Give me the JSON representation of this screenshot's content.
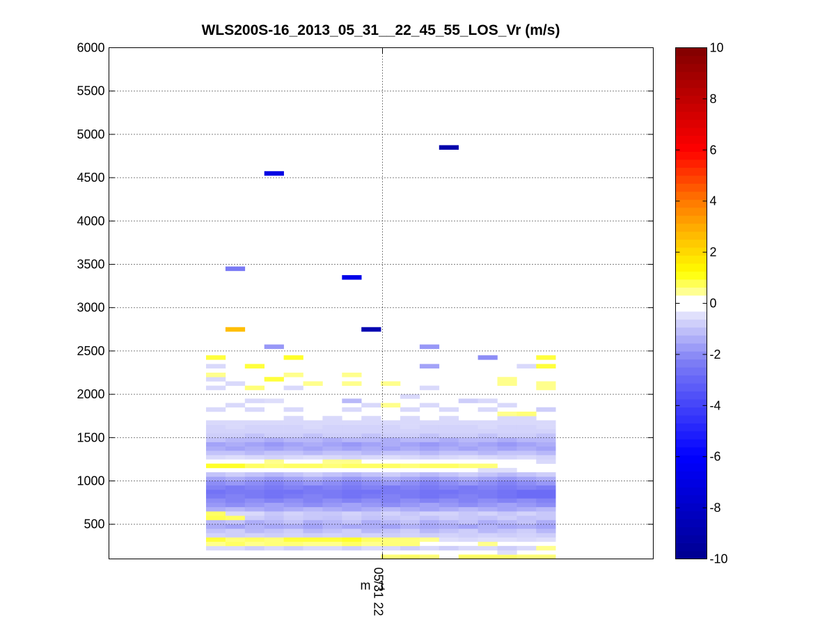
{
  "chart_data": {
    "type": "heatmap",
    "title": "WLS200S-16_2013_05_31__22_45_55_LOS_Vr (m/s)",
    "xlabel": "",
    "ylabel": "",
    "ylim": [
      100,
      6000
    ],
    "y_ticks": [
      "500",
      "1000",
      "1500",
      "2000",
      "2500",
      "3000",
      "3500",
      "4000",
      "4500",
      "5000",
      "5500",
      "6000"
    ],
    "x_tick_label": "05/31 22",
    "x_tick_label_overlap": "m -1",
    "grid": "dotted",
    "colorbar": {
      "range": [
        -10,
        10
      ],
      "ticks": [
        "-10",
        "-8",
        "-6",
        "-4",
        "-2",
        "0",
        "2",
        "4",
        "6",
        "8",
        "10"
      ],
      "colormap": "blue-white-yellow-red"
    },
    "column_count": 18,
    "range_gate_m": 50,
    "profile_rows": [
      {
        "altitude": 125,
        "values": [
          0,
          0,
          0,
          0,
          0,
          0,
          0,
          0,
          0,
          0.6,
          0.7,
          0.6,
          0,
          0.7,
          0.7,
          0.7,
          0.6,
          0.6
        ]
      },
      {
        "altitude": 175,
        "values": [
          0,
          0,
          0,
          0,
          0,
          0,
          0,
          0,
          0,
          0,
          0,
          0,
          0,
          0,
          0,
          -0.5,
          0,
          0
        ]
      },
      {
        "altitude": 225,
        "values": [
          -0.6,
          -0.6,
          -0.8,
          -0.6,
          -0.8,
          -0.6,
          -0.6,
          -0.8,
          -0.6,
          -0.6,
          -0.8,
          -0.6,
          -0.8,
          -0.6,
          -0.6,
          -0.8,
          -0.6,
          0.5
        ]
      },
      {
        "altitude": 275,
        "values": [
          0.5,
          0.7,
          0.5,
          0.6,
          0.6,
          0.5,
          0.5,
          0.7,
          0.5,
          0.6,
          0.6,
          0,
          0,
          0,
          0.5,
          0,
          0,
          0
        ]
      },
      {
        "altitude": 325,
        "values": [
          0.9,
          0.6,
          0.7,
          0.6,
          0.9,
          0.9,
          0.9,
          1.0,
          0.7,
          0.6,
          0.6,
          0.5,
          -0.5,
          -0.6,
          -0.5,
          -0.5,
          -0.6,
          -0.5
        ]
      },
      {
        "altitude": 375,
        "values": [
          -0.7,
          -0.8,
          -0.7,
          -0.8,
          -0.7,
          -0.8,
          -0.7,
          -0.8,
          -0.7,
          -0.8,
          -0.7,
          -0.8,
          -0.7,
          -0.8,
          -0.7,
          -0.8,
          -0.7,
          -0.8
        ]
      },
      {
        "altitude": 425,
        "values": [
          -1.0,
          -0.8,
          -1.2,
          -1.0,
          -0.8,
          -1.2,
          -1.0,
          -0.8,
          -1.2,
          -1.0,
          -0.8,
          -1.2,
          -1.0,
          -0.8,
          -1.2,
          -1.0,
          -0.8,
          -1.2
        ]
      },
      {
        "altitude": 475,
        "values": [
          -1.4,
          -1.6,
          -1.3,
          -1.5,
          -1.4,
          -1.6,
          -1.3,
          -1.5,
          -1.4,
          -1.6,
          -1.3,
          -1.5,
          -1.4,
          -1.6,
          -1.3,
          -1.5,
          -1.4,
          -1.6
        ]
      },
      {
        "altitude": 525,
        "values": [
          -1.2,
          -1.0,
          -1.4,
          -1.2,
          -1.0,
          -1.4,
          -1.2,
          -1.0,
          -1.4,
          -1.2,
          -1.0,
          -1.4,
          -1.2,
          -1.0,
          -1.4,
          -1.2,
          -1.0,
          -1.4
        ]
      },
      {
        "altitude": 575,
        "values": [
          0.8,
          0.7,
          -0.8,
          -1.0,
          -0.8,
          -0.9,
          -1.0,
          -0.8,
          -1.0,
          -0.9,
          -0.8,
          -1.0,
          -0.8,
          -0.9,
          -1.0,
          -0.8,
          -1.0,
          -0.9
        ]
      },
      {
        "altitude": 625,
        "values": [
          0.7,
          -0.6,
          -0.6,
          -0.9,
          -0.7,
          -0.9,
          -0.9,
          -0.7,
          -0.9,
          -0.7,
          -0.9,
          -0.7,
          -0.7,
          -0.9,
          -0.7,
          -0.9,
          -0.7,
          -0.9
        ]
      },
      {
        "altitude": 675,
        "values": [
          -1.4,
          -1.2,
          -1.4,
          -1.6,
          -1.4,
          -1.2,
          -1.4,
          -1.6,
          -1.4,
          -1.2,
          -1.4,
          -1.6,
          -1.4,
          -1.2,
          -1.4,
          -1.6,
          -1.4,
          -1.2
        ]
      },
      {
        "altitude": 725,
        "values": [
          -1.8,
          -2.0,
          -1.8,
          -1.6,
          -1.8,
          -2.0,
          -1.8,
          -1.6,
          -1.8,
          -2.0,
          -1.8,
          -1.6,
          -1.8,
          -2.0,
          -1.8,
          -1.6,
          -1.8,
          -2.0
        ]
      },
      {
        "altitude": 775,
        "values": [
          -2.0,
          -2.2,
          -2.0,
          -2.2,
          -2.0,
          -2.2,
          -2.0,
          -2.2,
          -2.0,
          -2.2,
          -2.0,
          -2.2,
          -2.0,
          -2.2,
          -2.0,
          -2.2,
          -2.0,
          -2.2
        ]
      },
      {
        "altitude": 825,
        "values": [
          -2.4,
          -2.2,
          -2.4,
          -2.6,
          -2.4,
          -2.2,
          -2.4,
          -2.6,
          -2.4,
          -2.2,
          -2.4,
          -2.6,
          -2.4,
          -2.2,
          -2.4,
          -2.6,
          -2.8,
          -2.8
        ]
      },
      {
        "altitude": 875,
        "values": [
          -2.6,
          -2.4,
          -2.4,
          -2.6,
          -2.6,
          -2.4,
          -2.4,
          -2.6,
          -2.6,
          -2.4,
          -2.4,
          -2.6,
          -2.6,
          -2.4,
          -2.4,
          -2.6,
          -2.8,
          -2.8
        ]
      },
      {
        "altitude": 925,
        "values": [
          -2.2,
          -2.4,
          -2.2,
          -2.4,
          -2.2,
          -2.4,
          -2.2,
          -2.4,
          -2.2,
          -2.4,
          -2.2,
          -2.4,
          -2.2,
          -2.4,
          -2.2,
          -2.4,
          -2.2,
          -2.4
        ]
      },
      {
        "altitude": 975,
        "values": [
          -2.0,
          -1.8,
          -2.0,
          -2.2,
          -2.0,
          -1.8,
          -2.0,
          -2.2,
          -2.0,
          -1.8,
          -2.0,
          -2.2,
          -2.0,
          -1.8,
          -2.0,
          -2.2,
          -2.0,
          -1.8
        ]
      },
      {
        "altitude": 1025,
        "values": [
          -1.6,
          -1.4,
          -1.6,
          -1.8,
          -1.6,
          -1.4,
          -1.6,
          -1.8,
          -1.6,
          -1.4,
          -1.6,
          -1.8,
          -1.6,
          -1.4,
          -1.6,
          -1.8,
          -1.6,
          -1.4
        ]
      },
      {
        "altitude": 1075,
        "values": [
          -1.0,
          -0.8,
          -1.0,
          -1.2,
          -1.0,
          -0.8,
          -1.0,
          -1.2,
          -1.0,
          -0.8,
          -1.0,
          -1.2,
          -1.0,
          -0.8,
          -1.0,
          -1.2,
          -1.0,
          -0.8
        ]
      },
      {
        "altitude": 1125,
        "values": [
          0,
          0,
          0,
          0,
          0,
          0,
          0,
          0,
          0,
          0,
          0,
          0,
          0,
          0,
          -0.5,
          -0.5,
          0,
          0
        ]
      },
      {
        "altitude": 1175,
        "values": [
          1.0,
          1.0,
          0.7,
          0.6,
          0.7,
          0.7,
          0.6,
          0.7,
          0.7,
          0.7,
          0.6,
          0.7,
          0.7,
          0.6,
          0.6,
          0,
          0,
          0
        ]
      },
      {
        "altitude": 1225,
        "values": [
          0,
          0,
          0,
          0.5,
          0,
          0,
          0.5,
          0.5,
          0,
          0,
          0,
          0,
          0,
          0,
          0,
          0,
          0,
          -0.6
        ]
      },
      {
        "altitude": 1275,
        "values": [
          -0.6,
          -0.5,
          -0.6,
          -0.7,
          -0.6,
          -0.5,
          -0.6,
          -0.7,
          -0.6,
          -0.5,
          -0.6,
          -0.7,
          -0.6,
          -0.5,
          -0.6,
          -0.7,
          -0.6,
          -0.7
        ]
      },
      {
        "altitude": 1325,
        "values": [
          -1.0,
          -1.0,
          -1.2,
          -1.0,
          -1.0,
          -1.2,
          -1.0,
          -1.0,
          -1.2,
          -1.0,
          -1.0,
          -1.2,
          -1.0,
          -1.0,
          -1.2,
          -1.0,
          -1.0,
          -1.2
        ]
      },
      {
        "altitude": 1375,
        "values": [
          -1.4,
          -1.6,
          -1.4,
          -1.6,
          -1.4,
          -1.6,
          -1.4,
          -1.6,
          -1.4,
          -1.6,
          -1.4,
          -1.6,
          -1.4,
          -1.6,
          -1.4,
          -1.6,
          -1.4,
          -1.6
        ]
      },
      {
        "altitude": 1425,
        "values": [
          -1.6,
          -1.4,
          -1.6,
          -1.8,
          -1.6,
          -1.4,
          -1.6,
          -1.8,
          -1.6,
          -1.4,
          -1.6,
          -1.8,
          -1.6,
          -1.4,
          -1.6,
          -1.8,
          -1.6,
          -1.4
        ]
      },
      {
        "altitude": 1475,
        "values": [
          -1.0,
          -1.2,
          -1.2,
          -1.4,
          -1.2,
          -1.2,
          -1.4,
          -1.2,
          -1.2,
          -1.4,
          -1.2,
          -1.2,
          -1.4,
          -1.2,
          -1.2,
          -1.4,
          -1.2,
          -1.2
        ]
      },
      {
        "altitude": 1525,
        "values": [
          -0.8,
          -0.8,
          -1.0,
          -0.8,
          -0.8,
          -1.0,
          -0.8,
          -0.8,
          -1.0,
          -0.8,
          -0.8,
          -1.0,
          -0.8,
          -0.8,
          -1.0,
          -0.8,
          -0.8,
          -1.0
        ]
      },
      {
        "altitude": 1575,
        "values": [
          -0.7,
          -0.7,
          -0.7,
          -0.7,
          -0.7,
          -0.7,
          -0.7,
          -0.7,
          -0.7,
          -0.7,
          -0.7,
          -0.7,
          -0.7,
          -0.7,
          -0.7,
          -0.7,
          -0.7,
          -0.7
        ]
      },
      {
        "altitude": 1625,
        "values": [
          -0.7,
          -0.6,
          -0.7,
          -0.7,
          -0.7,
          -0.6,
          -0.7,
          -0.7,
          -0.7,
          -0.7,
          -0.6,
          -0.7,
          -0.7,
          -0.7,
          -0.6,
          -0.7,
          -0.7,
          -0.6
        ]
      },
      {
        "altitude": 1675,
        "values": [
          -0.6,
          -0.6,
          -0.6,
          -0.6,
          -0.6,
          -0.6,
          -0.6,
          -0.6,
          -0.6,
          -0.6,
          -0.6,
          -0.6,
          -0.6,
          -0.6,
          -0.6,
          -0.6,
          -0.6,
          -0.6
        ]
      },
      {
        "altitude": 1725,
        "values": [
          0,
          0,
          0,
          0,
          -0.6,
          0,
          -0.6,
          0,
          -0.6,
          0,
          -0.6,
          0,
          -0.6,
          0,
          0,
          -0.6,
          -0.6,
          0
        ]
      },
      {
        "altitude": 1775,
        "values": [
          0,
          0,
          0,
          0,
          0,
          0,
          0,
          0,
          0,
          0,
          0,
          0,
          0,
          0,
          0,
          0.5,
          0.6,
          0
        ]
      },
      {
        "altitude": 1825,
        "values": [
          -0.6,
          0,
          -0.6,
          0,
          -0.6,
          0,
          0,
          -0.6,
          0,
          0,
          -0.6,
          0,
          -0.6,
          0,
          -0.6,
          0,
          0,
          -0.8
        ]
      },
      {
        "altitude": 1875,
        "values": [
          0,
          -0.6,
          0,
          0,
          0,
          0,
          0,
          0,
          -0.6,
          0.5,
          0,
          -0.6,
          0,
          0,
          0,
          -0.6,
          0,
          0
        ]
      },
      {
        "altitude": 1925,
        "values": [
          0,
          0,
          -0.6,
          -0.5,
          0,
          0,
          0,
          -1.2,
          0,
          0,
          0,
          0,
          0,
          -0.8,
          -0.6,
          0,
          0,
          0
        ]
      },
      {
        "altitude": 1975,
        "values": [
          0,
          0,
          0,
          0,
          0,
          0,
          0,
          0,
          0,
          0,
          -0.6,
          0,
          0,
          0,
          0,
          0,
          0,
          0
        ]
      },
      {
        "altitude": 2025,
        "values": [
          0,
          0,
          0,
          0,
          0,
          0,
          0,
          0,
          0,
          0,
          0,
          0,
          0,
          0,
          0,
          0,
          0,
          0
        ]
      },
      {
        "altitude": 2075,
        "values": [
          -0.6,
          0,
          0.6,
          0,
          -0.6,
          0,
          0,
          0,
          0,
          0,
          0,
          -0.6,
          0,
          0,
          0,
          0,
          0,
          0.5
        ]
      },
      {
        "altitude": 2125,
        "values": [
          0,
          -0.6,
          0,
          0,
          0,
          0.5,
          0,
          0.5,
          0,
          0.5,
          0,
          0,
          0,
          0,
          0,
          0.5,
          0,
          0.5
        ]
      },
      {
        "altitude": 2175,
        "values": [
          -0.6,
          0,
          0,
          0.9,
          0,
          0,
          0,
          0,
          0,
          0,
          0,
          0,
          0,
          0,
          0,
          0.5,
          0,
          0
        ]
      },
      {
        "altitude": 2225,
        "values": [
          0.5,
          0,
          0,
          0,
          0.5,
          0,
          0,
          0.5,
          0,
          0,
          0,
          0,
          0,
          0,
          0,
          0,
          0,
          0
        ]
      },
      {
        "altitude": 2275,
        "values": [
          0,
          0,
          0,
          0,
          0,
          0,
          0,
          0,
          0,
          0,
          0,
          0,
          0,
          0,
          0,
          0,
          0,
          0
        ]
      },
      {
        "altitude": 2325,
        "values": [
          -0.6,
          0,
          0.9,
          0,
          0,
          0,
          0,
          0,
          0,
          0,
          0,
          -1.6,
          0,
          0,
          0,
          0,
          -0.6,
          0.9
        ]
      },
      {
        "altitude": 2375,
        "values": [
          0,
          0,
          0,
          0,
          0,
          0,
          0,
          0,
          0,
          0,
          0,
          0,
          0,
          0,
          0,
          0,
          0,
          0
        ]
      },
      {
        "altitude": 2425,
        "values": [
          0.9,
          0,
          0,
          0,
          1.0,
          0,
          0,
          0,
          0,
          0,
          0,
          0,
          0,
          0,
          -2.0,
          0,
          0,
          0.9
        ]
      },
      {
        "altitude": 2475,
        "values": [
          0,
          0,
          0,
          0,
          0,
          0,
          0,
          0,
          0,
          0,
          0,
          0,
          0,
          0,
          0,
          0,
          0,
          0
        ]
      }
    ],
    "sparse_cells": [
      {
        "altitude": 2550,
        "column": 3,
        "value": -1.8
      },
      {
        "altitude": 2550,
        "column": 11,
        "value": -1.8
      },
      {
        "altitude": 2750,
        "column": 1,
        "value": 2.6
      },
      {
        "altitude": 2750,
        "column": 8,
        "value": -8.8
      },
      {
        "altitude": 3350,
        "column": 7,
        "value": -6.8
      },
      {
        "altitude": 3450,
        "column": 1,
        "value": -2.4
      },
      {
        "altitude": 4550,
        "column": 3,
        "value": -7.0
      },
      {
        "altitude": 4850,
        "column": 12,
        "value": -9.0
      }
    ]
  }
}
